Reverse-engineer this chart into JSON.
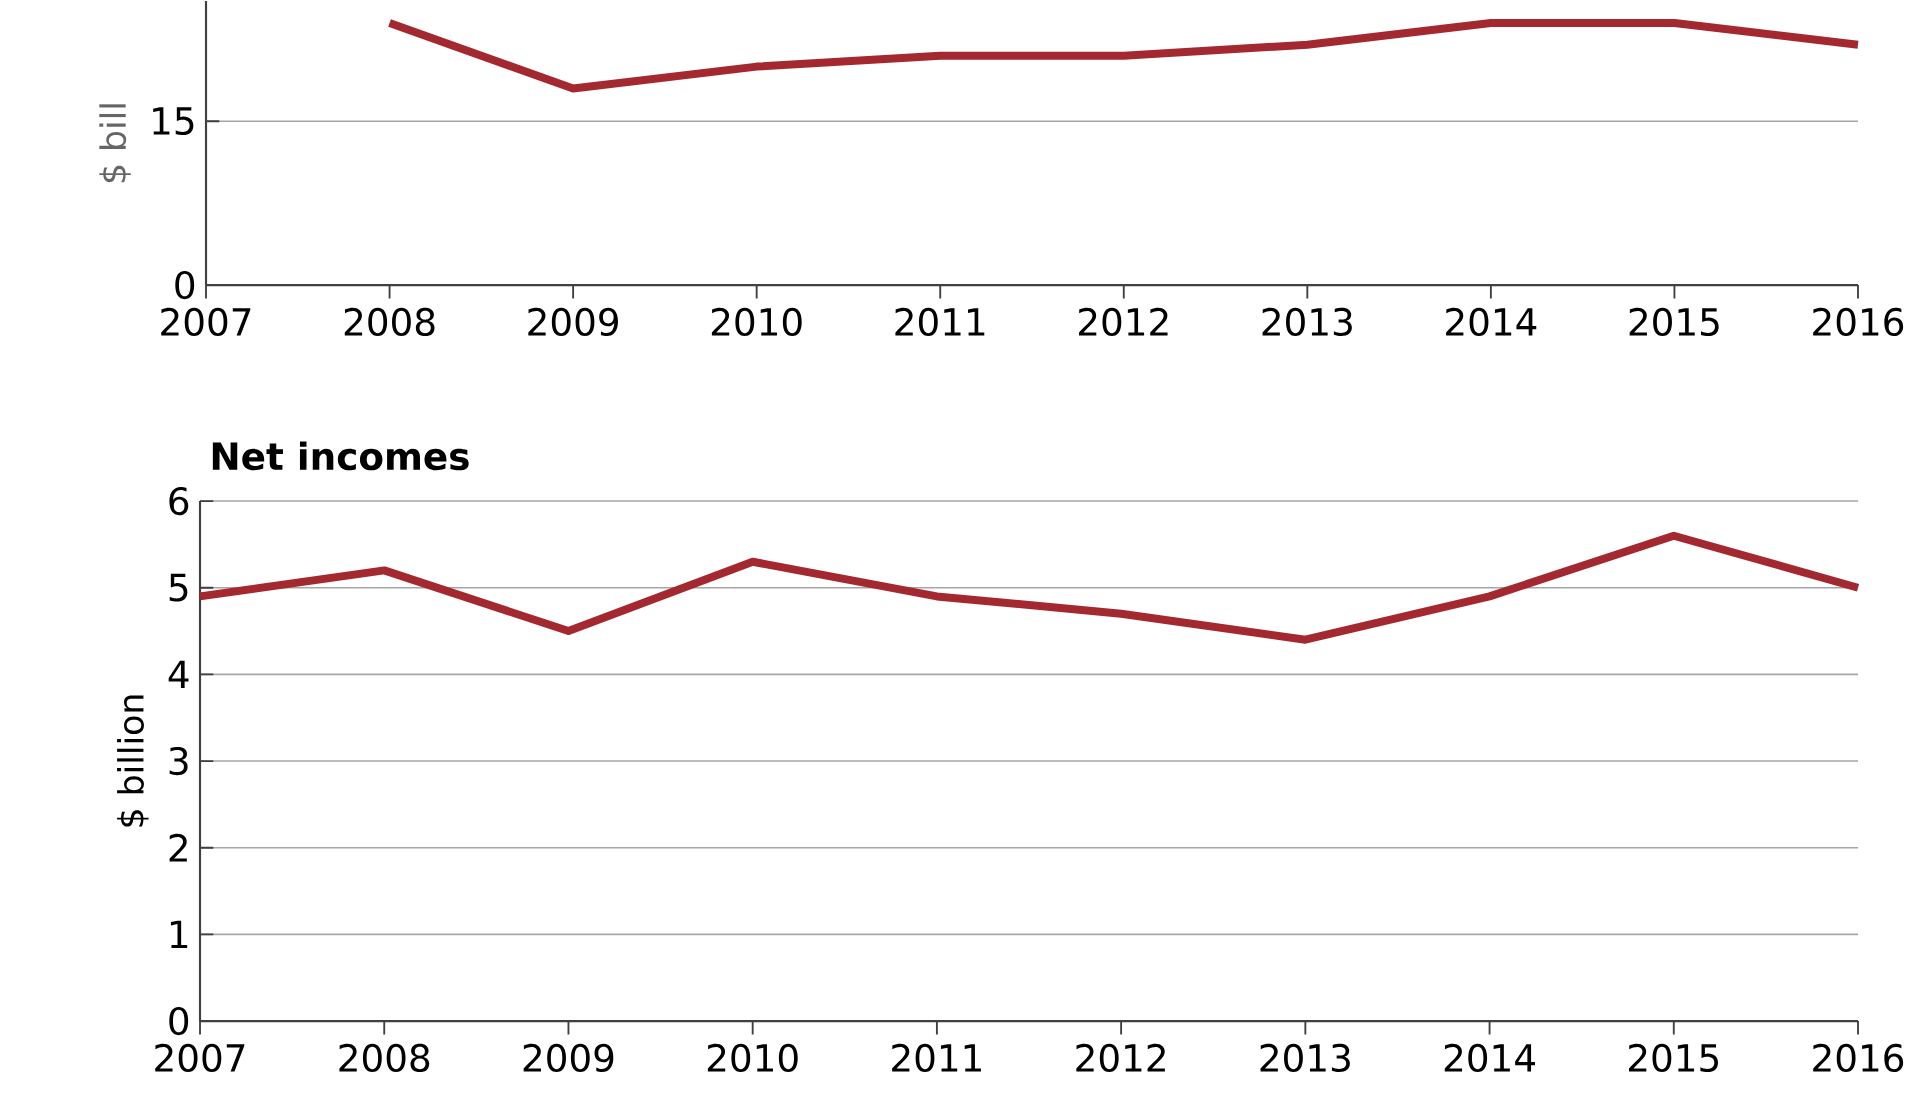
{
  "chart_data": [
    {
      "type": "line",
      "ylabel": "$ bill",
      "x": [
        2008,
        2009,
        2010,
        2011,
        2012,
        2013,
        2014,
        2015,
        2016
      ],
      "series": [
        {
          "color": "#a3282f",
          "values": [
            24,
            18,
            20,
            21,
            21,
            22,
            24,
            24,
            22
          ]
        }
      ],
      "xlim": [
        2007,
        2016
      ],
      "xticks": [
        2007,
        2008,
        2009,
        2010,
        2011,
        2012,
        2013,
        2014,
        2015,
        2016
      ],
      "ylim": [
        0,
        26
      ],
      "yticks": [
        0,
        15
      ],
      "grid": "y"
    },
    {
      "type": "line",
      "title": "Net incomes",
      "ylabel": "$ billion",
      "x": [
        2007,
        2008,
        2009,
        2010,
        2011,
        2012,
        2013,
        2014,
        2015,
        2016
      ],
      "series": [
        {
          "color": "#a3282f",
          "values": [
            4.9,
            5.2,
            4.5,
            5.3,
            4.9,
            4.7,
            4.4,
            4.9,
            5.6,
            5.0
          ]
        }
      ],
      "xlim": [
        2007,
        2016
      ],
      "xticks": [
        2007,
        2008,
        2009,
        2010,
        2011,
        2012,
        2013,
        2014,
        2015,
        2016
      ],
      "ylim": [
        0,
        6
      ],
      "yticks": [
        0,
        1,
        2,
        3,
        4,
        5,
        6
      ],
      "grid": "y"
    }
  ]
}
